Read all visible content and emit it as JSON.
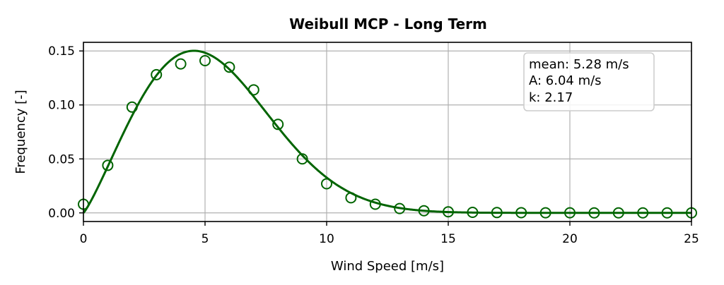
{
  "chart_data": {
    "type": "line",
    "title": "Weibull MCP - Long Term",
    "xlabel": "Wind Speed [m/s]",
    "ylabel": "Frequency [-]",
    "xlim": [
      0,
      25
    ],
    "ylim": [
      -0.008,
      0.158
    ],
    "xticks": [
      0,
      5,
      10,
      15,
      20,
      25
    ],
    "yticks": [
      0.0,
      0.05,
      0.1,
      0.15
    ],
    "ytick_labels": [
      "0.00",
      "0.05",
      "0.10",
      "0.15"
    ],
    "grid": true,
    "color": "#006400",
    "fit": {
      "A": 6.04,
      "k": 2.17
    },
    "series": [
      {
        "kind": "markers",
        "x": [
          0,
          1,
          2,
          3,
          4,
          5,
          6,
          7,
          8,
          9,
          10,
          11,
          12,
          13,
          14,
          15,
          16,
          17,
          18,
          19,
          20,
          21,
          22,
          23,
          24,
          25
        ],
        "y": [
          0.008,
          0.044,
          0.098,
          0.128,
          0.138,
          0.141,
          0.135,
          0.114,
          0.082,
          0.05,
          0.027,
          0.014,
          0.008,
          0.004,
          0.002,
          0.001,
          0.0005,
          0.0003,
          0.0002,
          0.0001,
          0.0001,
          0.0,
          0.0,
          0.0,
          0.0,
          0.0
        ]
      },
      {
        "kind": "line",
        "function": "weibull_pdf"
      }
    ],
    "legend": {
      "position": "top-right",
      "lines": [
        "mean: 5.28 m/s",
        "A: 6.04 m/s",
        "k: 2.17"
      ]
    }
  }
}
